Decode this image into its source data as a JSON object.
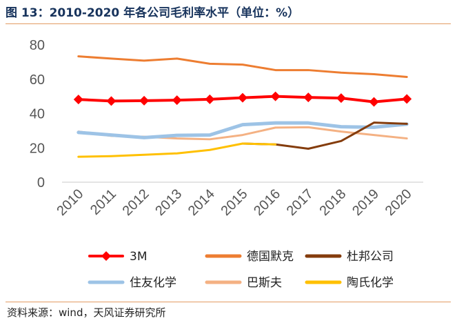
{
  "header": {
    "title": "图 13：2010-2020 年各公司毛利率水平（单位：%）"
  },
  "footer": {
    "source": "资料来源：wind，天风证券研究所"
  },
  "chart_data": {
    "type": "line",
    "title": "图 13：2010-2020 年各公司毛利率水平（单位：%）",
    "xlabel": "",
    "ylabel": "",
    "ylim": [
      0,
      80
    ],
    "yticks": [
      "0",
      "20",
      "40",
      "60",
      "80"
    ],
    "categories": [
      "2010",
      "2011",
      "2012",
      "2013",
      "2014",
      "2015",
      "2016",
      "2017",
      "2018",
      "2019",
      "2020"
    ],
    "grid": false,
    "legend_position": "bottom",
    "series": [
      {
        "name": "3M",
        "color": "#ff0000",
        "marker": "diamond",
        "width": 4,
        "values": [
          48.2,
          47.3,
          47.5,
          47.8,
          48.3,
          49.2,
          50.0,
          49.4,
          49.0,
          46.8,
          48.5
        ]
      },
      {
        "name": "德国默克",
        "color": "#ed7d31",
        "marker": "none",
        "width": 3,
        "values": [
          73.3,
          72.0,
          70.8,
          72.0,
          69.0,
          68.5,
          65.3,
          65.3,
          63.8,
          62.9,
          61.3
        ]
      },
      {
        "name": "杜邦公司",
        "color": "#843c0c",
        "marker": "none",
        "width": 3,
        "values": [
          null,
          null,
          null,
          null,
          null,
          22.5,
          22.0,
          19.5,
          24.0,
          34.7,
          34.0
        ]
      },
      {
        "name": "住友化学",
        "color": "#9dc3e6",
        "marker": "none",
        "width": 5,
        "values": [
          29.0,
          27.5,
          26.0,
          27.3,
          27.5,
          33.5,
          34.5,
          34.5,
          32.3,
          32.0,
          33.8
        ]
      },
      {
        "name": "巴斯夫",
        "color": "#f4b183",
        "marker": "none",
        "width": 3,
        "values": [
          29.5,
          27.0,
          26.5,
          25.5,
          25.0,
          27.5,
          31.8,
          32.0,
          29.5,
          27.5,
          25.5
        ]
      },
      {
        "name": "陶氏化学",
        "color": "#ffc000",
        "marker": "none",
        "width": 3,
        "values": [
          14.8,
          15.2,
          16.0,
          16.8,
          18.8,
          22.5,
          22.0,
          null,
          null,
          null,
          null
        ]
      }
    ]
  }
}
